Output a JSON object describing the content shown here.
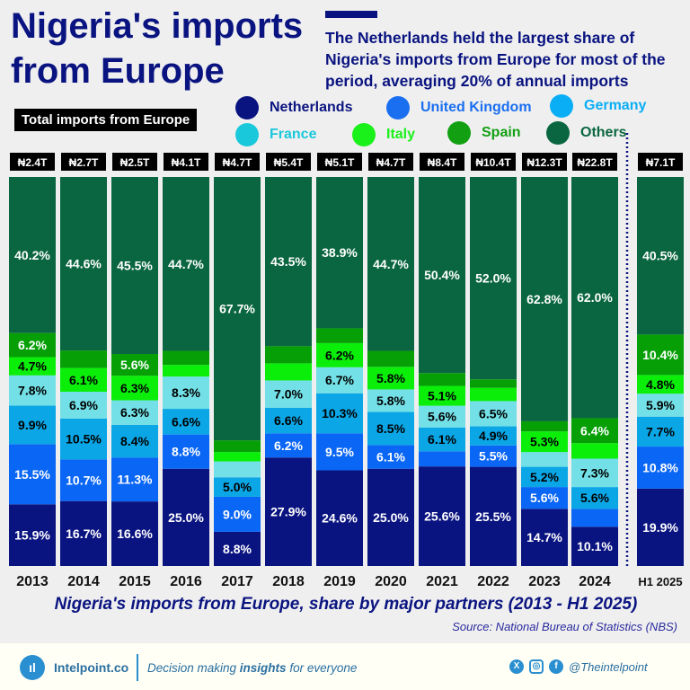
{
  "header": {
    "title": "Nigeria's imports from Europe",
    "subtitle": "The Netherlands held the largest share of Nigeria's imports from Europe for most of the period, averaging 20% of annual imports",
    "total_label": "Total imports from Europe"
  },
  "chart_data": {
    "type": "bar",
    "stacked": true,
    "normalized": true,
    "title": "Nigeria's imports from Europe, share by major partners (2013 - H1 2025)",
    "source": "Source: National Bureau of Statistics (NBS)",
    "categories": [
      "2013",
      "2014",
      "2015",
      "2016",
      "2017",
      "2018",
      "2019",
      "2020",
      "2021",
      "2022",
      "2023",
      "2024",
      "H1 2025"
    ],
    "totals": [
      "₦2.4T",
      "₦2.7T",
      "₦2.5T",
      "₦4.1T",
      "₦4.7T",
      "₦5.4T",
      "₦5.1T",
      "₦4.7T",
      "₦8.4T",
      "₦10.4T",
      "₦12.3T",
      "₦22.8T",
      "₦7.1T"
    ],
    "ylim": [
      0,
      100
    ],
    "legend_placement": "top",
    "series": [
      {
        "name": "Netherlands",
        "color": "#0a1480",
        "legend_color": "#0a1480",
        "text": "#fff",
        "values": [
          15.9,
          16.7,
          16.6,
          25.0,
          8.8,
          27.9,
          24.6,
          25.0,
          25.6,
          25.5,
          14.7,
          10.1,
          19.9
        ],
        "labeled": [
          1,
          1,
          1,
          1,
          1,
          1,
          1,
          1,
          1,
          1,
          1,
          1,
          1
        ]
      },
      {
        "name": "United Kingdom",
        "color": "#0a66f5",
        "legend_color": "#1a6ff0",
        "text": "#fff",
        "values": [
          15.5,
          10.7,
          11.3,
          8.8,
          9.0,
          6.2,
          9.5,
          6.1,
          3.9,
          5.5,
          5.6,
          4.6,
          10.8
        ],
        "labeled": [
          1,
          1,
          1,
          1,
          1,
          1,
          1,
          1,
          0,
          1,
          1,
          0,
          1
        ]
      },
      {
        "name": "Germany",
        "color": "#0aa6e6",
        "legend_color": "#0aaef5",
        "text": "#000",
        "values": [
          9.9,
          10.5,
          8.4,
          6.6,
          5.0,
          6.6,
          10.3,
          8.5,
          6.1,
          4.9,
          5.2,
          5.6,
          7.7
        ],
        "labeled": [
          1,
          1,
          1,
          1,
          1,
          1,
          1,
          1,
          1,
          1,
          1,
          1,
          1
        ]
      },
      {
        "name": "France",
        "color": "#72e0e6",
        "legend_color": "#1ac8dc",
        "text": "#000",
        "values": [
          7.8,
          6.9,
          6.3,
          8.3,
          4.1,
          7.0,
          6.7,
          5.8,
          5.6,
          6.5,
          3.8,
          7.3,
          5.9
        ],
        "labeled": [
          1,
          1,
          1,
          1,
          0,
          1,
          1,
          1,
          1,
          1,
          0,
          1,
          1
        ]
      },
      {
        "name": "Italy",
        "color": "#0aee0a",
        "legend_color": "#1af01a",
        "text": "#000",
        "values": [
          4.7,
          6.1,
          6.3,
          3.0,
          2.4,
          4.4,
          6.2,
          5.8,
          5.1,
          3.4,
          5.3,
          4.0,
          4.8
        ],
        "labeled": [
          1,
          1,
          1,
          0,
          0,
          0,
          1,
          1,
          1,
          0,
          1,
          0,
          1
        ]
      },
      {
        "name": "Spain",
        "color": "#06a006",
        "legend_color": "#12a012",
        "text": "#fff",
        "values": [
          6.2,
          4.5,
          5.6,
          3.6,
          3.0,
          4.4,
          3.8,
          4.1,
          3.3,
          2.2,
          2.6,
          6.4,
          10.4
        ],
        "labeled": [
          1,
          0,
          1,
          0,
          0,
          0,
          0,
          0,
          0,
          0,
          0,
          1,
          1
        ]
      },
      {
        "name": "Others",
        "color": "#0a6640",
        "legend_color": "#0a6640",
        "text": "#fff",
        "values": [
          40.2,
          44.6,
          45.5,
          44.7,
          67.7,
          43.5,
          38.9,
          44.7,
          50.4,
          52.0,
          62.8,
          62.0,
          40.5
        ],
        "labeled": [
          1,
          1,
          1,
          1,
          1,
          1,
          1,
          1,
          1,
          1,
          1,
          1,
          1
        ]
      }
    ]
  },
  "footer": {
    "logo_glyph": "ıl",
    "brand": "Intelpoint.co",
    "tagline_pre": "Decision making ",
    "tagline_bold": "insights",
    "tagline_post": " for everyone",
    "handle": "@Theintelpoint",
    "x_glyph": "X",
    "ig_glyph": "◎",
    "fb_glyph": "f"
  }
}
